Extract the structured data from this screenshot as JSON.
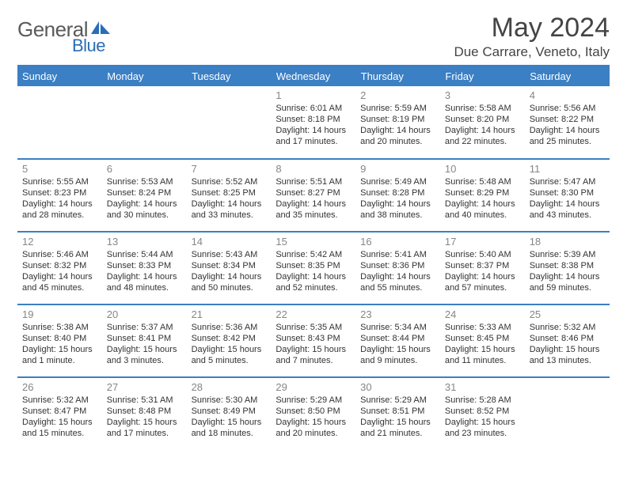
{
  "logo": {
    "part1": "General",
    "part2": "Blue"
  },
  "title": "May 2024",
  "subtitle": "Due Carrare, Veneto, Italy",
  "colors": {
    "header_bg": "#3b7fc4",
    "header_text": "#ffffff",
    "rule": "#3b7fc4",
    "day_number": "#868686",
    "body_text": "#333333",
    "logo_gray": "#5a5a5a",
    "logo_blue": "#2a6db5",
    "page_bg": "#ffffff"
  },
  "weekdays": [
    "Sunday",
    "Monday",
    "Tuesday",
    "Wednesday",
    "Thursday",
    "Friday",
    "Saturday"
  ],
  "weeks": [
    [
      null,
      null,
      null,
      {
        "n": "1",
        "sr": "Sunrise: 6:01 AM",
        "ss": "Sunset: 8:18 PM",
        "d1": "Daylight: 14 hours",
        "d2": "and 17 minutes."
      },
      {
        "n": "2",
        "sr": "Sunrise: 5:59 AM",
        "ss": "Sunset: 8:19 PM",
        "d1": "Daylight: 14 hours",
        "d2": "and 20 minutes."
      },
      {
        "n": "3",
        "sr": "Sunrise: 5:58 AM",
        "ss": "Sunset: 8:20 PM",
        "d1": "Daylight: 14 hours",
        "d2": "and 22 minutes."
      },
      {
        "n": "4",
        "sr": "Sunrise: 5:56 AM",
        "ss": "Sunset: 8:22 PM",
        "d1": "Daylight: 14 hours",
        "d2": "and 25 minutes."
      }
    ],
    [
      {
        "n": "5",
        "sr": "Sunrise: 5:55 AM",
        "ss": "Sunset: 8:23 PM",
        "d1": "Daylight: 14 hours",
        "d2": "and 28 minutes."
      },
      {
        "n": "6",
        "sr": "Sunrise: 5:53 AM",
        "ss": "Sunset: 8:24 PM",
        "d1": "Daylight: 14 hours",
        "d2": "and 30 minutes."
      },
      {
        "n": "7",
        "sr": "Sunrise: 5:52 AM",
        "ss": "Sunset: 8:25 PM",
        "d1": "Daylight: 14 hours",
        "d2": "and 33 minutes."
      },
      {
        "n": "8",
        "sr": "Sunrise: 5:51 AM",
        "ss": "Sunset: 8:27 PM",
        "d1": "Daylight: 14 hours",
        "d2": "and 35 minutes."
      },
      {
        "n": "9",
        "sr": "Sunrise: 5:49 AM",
        "ss": "Sunset: 8:28 PM",
        "d1": "Daylight: 14 hours",
        "d2": "and 38 minutes."
      },
      {
        "n": "10",
        "sr": "Sunrise: 5:48 AM",
        "ss": "Sunset: 8:29 PM",
        "d1": "Daylight: 14 hours",
        "d2": "and 40 minutes."
      },
      {
        "n": "11",
        "sr": "Sunrise: 5:47 AM",
        "ss": "Sunset: 8:30 PM",
        "d1": "Daylight: 14 hours",
        "d2": "and 43 minutes."
      }
    ],
    [
      {
        "n": "12",
        "sr": "Sunrise: 5:46 AM",
        "ss": "Sunset: 8:32 PM",
        "d1": "Daylight: 14 hours",
        "d2": "and 45 minutes."
      },
      {
        "n": "13",
        "sr": "Sunrise: 5:44 AM",
        "ss": "Sunset: 8:33 PM",
        "d1": "Daylight: 14 hours",
        "d2": "and 48 minutes."
      },
      {
        "n": "14",
        "sr": "Sunrise: 5:43 AM",
        "ss": "Sunset: 8:34 PM",
        "d1": "Daylight: 14 hours",
        "d2": "and 50 minutes."
      },
      {
        "n": "15",
        "sr": "Sunrise: 5:42 AM",
        "ss": "Sunset: 8:35 PM",
        "d1": "Daylight: 14 hours",
        "d2": "and 52 minutes."
      },
      {
        "n": "16",
        "sr": "Sunrise: 5:41 AM",
        "ss": "Sunset: 8:36 PM",
        "d1": "Daylight: 14 hours",
        "d2": "and 55 minutes."
      },
      {
        "n": "17",
        "sr": "Sunrise: 5:40 AM",
        "ss": "Sunset: 8:37 PM",
        "d1": "Daylight: 14 hours",
        "d2": "and 57 minutes."
      },
      {
        "n": "18",
        "sr": "Sunrise: 5:39 AM",
        "ss": "Sunset: 8:38 PM",
        "d1": "Daylight: 14 hours",
        "d2": "and 59 minutes."
      }
    ],
    [
      {
        "n": "19",
        "sr": "Sunrise: 5:38 AM",
        "ss": "Sunset: 8:40 PM",
        "d1": "Daylight: 15 hours",
        "d2": "and 1 minute."
      },
      {
        "n": "20",
        "sr": "Sunrise: 5:37 AM",
        "ss": "Sunset: 8:41 PM",
        "d1": "Daylight: 15 hours",
        "d2": "and 3 minutes."
      },
      {
        "n": "21",
        "sr": "Sunrise: 5:36 AM",
        "ss": "Sunset: 8:42 PM",
        "d1": "Daylight: 15 hours",
        "d2": "and 5 minutes."
      },
      {
        "n": "22",
        "sr": "Sunrise: 5:35 AM",
        "ss": "Sunset: 8:43 PM",
        "d1": "Daylight: 15 hours",
        "d2": "and 7 minutes."
      },
      {
        "n": "23",
        "sr": "Sunrise: 5:34 AM",
        "ss": "Sunset: 8:44 PM",
        "d1": "Daylight: 15 hours",
        "d2": "and 9 minutes."
      },
      {
        "n": "24",
        "sr": "Sunrise: 5:33 AM",
        "ss": "Sunset: 8:45 PM",
        "d1": "Daylight: 15 hours",
        "d2": "and 11 minutes."
      },
      {
        "n": "25",
        "sr": "Sunrise: 5:32 AM",
        "ss": "Sunset: 8:46 PM",
        "d1": "Daylight: 15 hours",
        "d2": "and 13 minutes."
      }
    ],
    [
      {
        "n": "26",
        "sr": "Sunrise: 5:32 AM",
        "ss": "Sunset: 8:47 PM",
        "d1": "Daylight: 15 hours",
        "d2": "and 15 minutes."
      },
      {
        "n": "27",
        "sr": "Sunrise: 5:31 AM",
        "ss": "Sunset: 8:48 PM",
        "d1": "Daylight: 15 hours",
        "d2": "and 17 minutes."
      },
      {
        "n": "28",
        "sr": "Sunrise: 5:30 AM",
        "ss": "Sunset: 8:49 PM",
        "d1": "Daylight: 15 hours",
        "d2": "and 18 minutes."
      },
      {
        "n": "29",
        "sr": "Sunrise: 5:29 AM",
        "ss": "Sunset: 8:50 PM",
        "d1": "Daylight: 15 hours",
        "d2": "and 20 minutes."
      },
      {
        "n": "30",
        "sr": "Sunrise: 5:29 AM",
        "ss": "Sunset: 8:51 PM",
        "d1": "Daylight: 15 hours",
        "d2": "and 21 minutes."
      },
      {
        "n": "31",
        "sr": "Sunrise: 5:28 AM",
        "ss": "Sunset: 8:52 PM",
        "d1": "Daylight: 15 hours",
        "d2": "and 23 minutes."
      },
      null
    ]
  ]
}
